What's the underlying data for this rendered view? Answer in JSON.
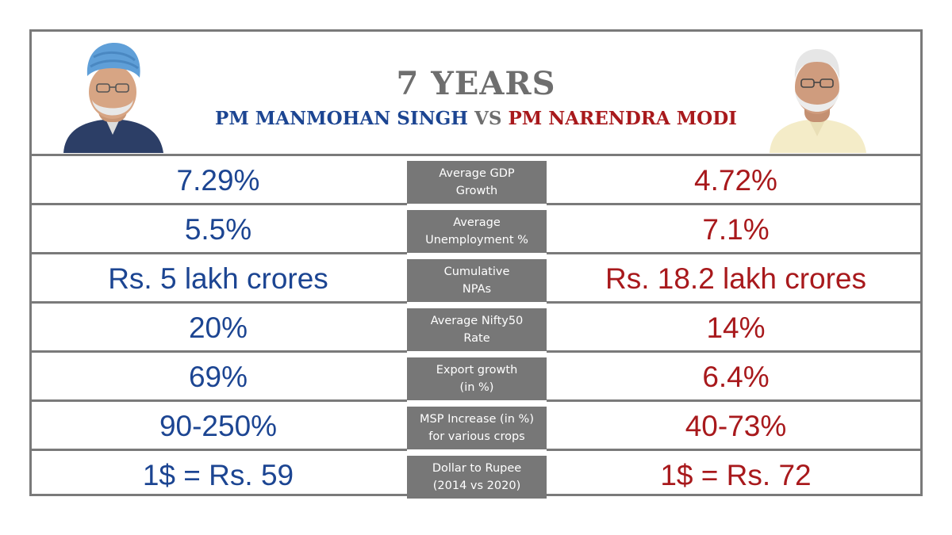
{
  "header": {
    "title": "7 YEARS",
    "left_name": "PM MANMOHAN SINGH",
    "vs": "VS",
    "right_name": "PM NARENDRA MODI"
  },
  "colors": {
    "left_accent": "#1c4592",
    "right_accent": "#a8191c",
    "metric_box": "#777777",
    "border": "#7a7a7a"
  },
  "rows": [
    {
      "left": "7.29%",
      "metric_line1": "Average GDP",
      "metric_line2": "Growth",
      "right": "4.72%"
    },
    {
      "left": "5.5%",
      "metric_line1": "Average",
      "metric_line2": "Unemployment %",
      "right": "7.1%"
    },
    {
      "left": "Rs. 5 lakh crores",
      "metric_line1": "Cumulative",
      "metric_line2": "NPAs",
      "right": "Rs. 18.2 lakh crores"
    },
    {
      "left": "20%",
      "metric_line1": "Average Nifty50",
      "metric_line2": "Rate",
      "right": "14%"
    },
    {
      "left": "69%",
      "metric_line1": "Export growth",
      "metric_line2": "(in %)",
      "right": "6.4%"
    },
    {
      "left": "90-250%",
      "metric_line1": "MSP Increase (in %)",
      "metric_line2": "for various crops",
      "right": "40-73%"
    },
    {
      "left": "1$ = Rs. 59",
      "metric_line1": "Dollar to Rupee",
      "metric_line2": "(2014 vs 2020)",
      "right": "1$ = Rs. 72"
    }
  ]
}
